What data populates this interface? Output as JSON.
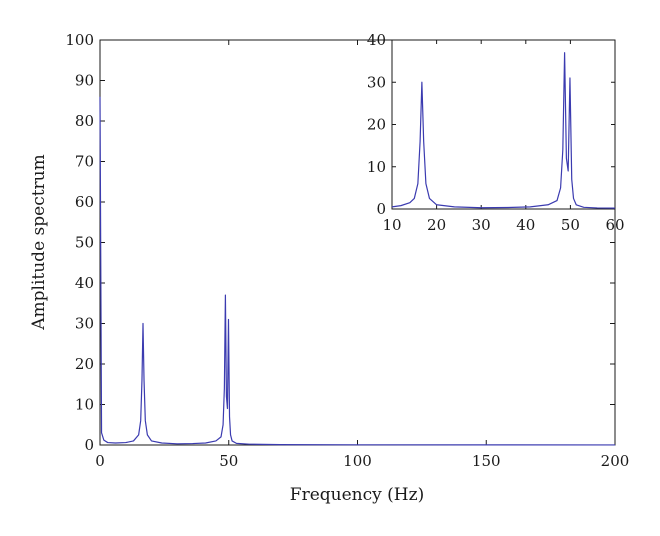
{
  "chart_data": [
    {
      "type": "line",
      "title": "",
      "xlabel": "Frequency (Hz)",
      "ylabel": "Amplitude spectrum",
      "xlim": [
        0,
        200
      ],
      "ylim": [
        0,
        100
      ],
      "xticks": [
        "0",
        "50",
        "100",
        "150",
        "200"
      ],
      "yticks": [
        "0",
        "10",
        "20",
        "30",
        "40",
        "50",
        "60",
        "70",
        "80",
        "90",
        "100"
      ],
      "grid": false,
      "legend": "none",
      "series": [
        {
          "color": "#3b3bb0",
          "x": [
            0,
            0.6,
            1.5,
            3,
            6,
            10,
            13,
            15,
            15.8,
            16.3,
            16.7,
            17.1,
            17.6,
            18.4,
            20,
            24,
            30,
            36,
            41,
            45,
            47,
            47.8,
            48.3,
            48.7,
            49.1,
            49.5,
            49.9,
            50.3,
            50.7,
            51.3,
            53,
            58,
            70,
            100,
            150,
            200
          ],
          "y": [
            86,
            3,
            1.2,
            0.6,
            0.5,
            0.6,
            1.0,
            2.5,
            6,
            16,
            30,
            16,
            6,
            2.5,
            1.0,
            0.5,
            0.3,
            0.35,
            0.5,
            1.0,
            2.0,
            5,
            14,
            37,
            12,
            9,
            31,
            7,
            2.5,
            1.0,
            0.4,
            0.2,
            0.1,
            0.05,
            0.03,
            0.02
          ]
        }
      ]
    },
    {
      "type": "line",
      "title": "",
      "xlabel": "",
      "ylabel": "",
      "xlim": [
        10,
        60
      ],
      "ylim": [
        0,
        40
      ],
      "xticks": [
        "10",
        "20",
        "30",
        "40",
        "50",
        "60"
      ],
      "yticks": [
        "0",
        "10",
        "20",
        "30",
        "40"
      ],
      "grid": false,
      "legend": "none",
      "series": [
        {
          "color": "#3b3bb0",
          "x": [
            10,
            12,
            14,
            15,
            15.8,
            16.3,
            16.7,
            17.1,
            17.6,
            18.4,
            20,
            24,
            30,
            36,
            41,
            45,
            47,
            47.8,
            48.3,
            48.7,
            49.1,
            49.5,
            49.9,
            50.3,
            50.7,
            51.3,
            53,
            56,
            60
          ],
          "y": [
            0.5,
            0.8,
            1.5,
            2.5,
            6,
            16,
            30,
            16,
            6,
            2.5,
            1.0,
            0.5,
            0.3,
            0.35,
            0.5,
            1.0,
            2.0,
            5,
            14,
            37,
            12,
            9,
            31,
            7,
            2.5,
            1.0,
            0.4,
            0.25,
            0.2
          ]
        }
      ]
    }
  ]
}
